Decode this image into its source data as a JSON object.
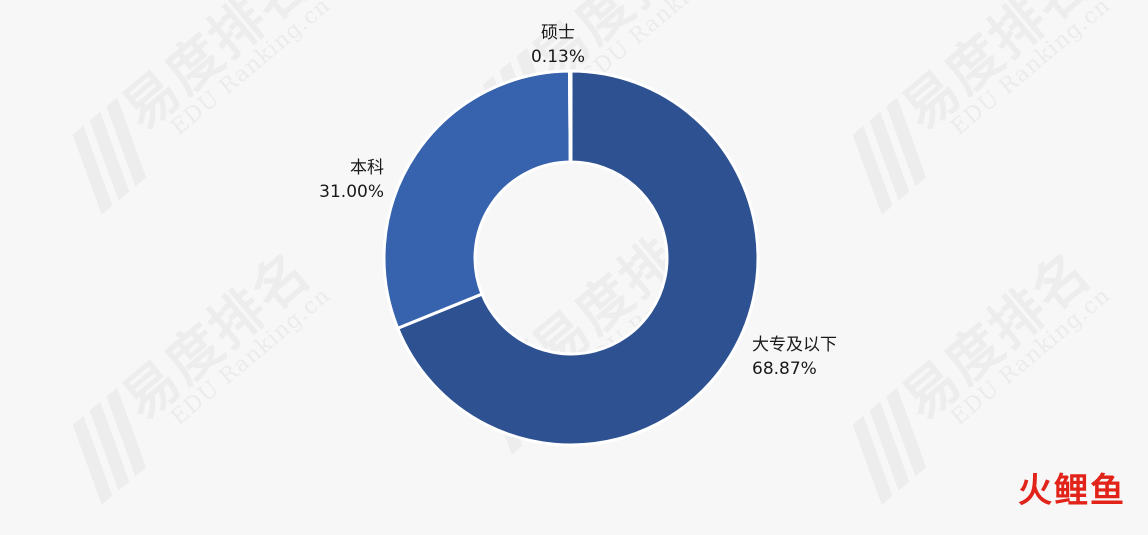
{
  "chart_data": {
    "type": "pie",
    "donut": true,
    "title": "",
    "slices": [
      {
        "label": "大专及以下",
        "value": 68.87,
        "value_label": "68.87%",
        "color": "#2e5192"
      },
      {
        "label": "本科",
        "value": 31.0,
        "value_label": "31.00%",
        "color": "#3762ad"
      },
      {
        "label": "硕士",
        "value": 0.13,
        "value_label": "0.13%",
        "color": "#4a78c2"
      }
    ],
    "start_angle_deg": 0,
    "direction": "clockwise",
    "slice_separator_color": "#ffffff",
    "legend": "none"
  },
  "watermark": {
    "brand": "易度排名",
    "subtext": "EDU Ranking.cn"
  },
  "corner_brand": {
    "text": "火鲤鱼",
    "color": "#e2231a"
  }
}
